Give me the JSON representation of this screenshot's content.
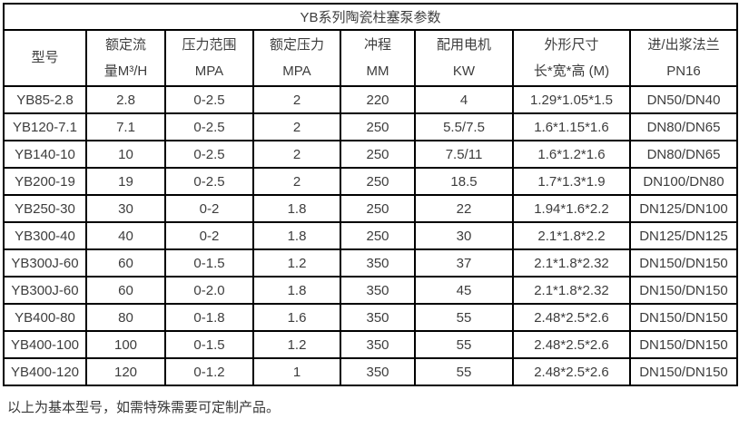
{
  "title": "YB系列陶瓷柱塞泵参数",
  "table": {
    "columns": [
      {
        "lines": [
          "型号"
        ]
      },
      {
        "lines": [
          "额定流",
          "量M³/H"
        ]
      },
      {
        "lines": [
          "压力范围",
          "MPA"
        ]
      },
      {
        "lines": [
          "额定压力",
          "MPA"
        ]
      },
      {
        "lines": [
          "冲程",
          "MM"
        ]
      },
      {
        "lines": [
          "配用电机",
          "KW"
        ]
      },
      {
        "lines": [
          "外形尺寸",
          "长*宽*高 (M)"
        ]
      },
      {
        "lines": [
          "进/出浆法兰",
          "PN16"
        ]
      }
    ],
    "rows": [
      [
        "YB85-2.8",
        "2.8",
        "0-2.5",
        "2",
        "220",
        "4",
        "1.29*1.05*1.5",
        "DN50/DN40"
      ],
      [
        "YB120-7.1",
        "7.1",
        "0-2.5",
        "2",
        "250",
        "5.5/7.5",
        "1.6*1.15*1.6",
        "DN80/DN65"
      ],
      [
        "YB140-10",
        "10",
        "0-2.5",
        "2",
        "250",
        "7.5/11",
        "1.6*1.2*1.6",
        "DN80/DN65"
      ],
      [
        "YB200-19",
        "19",
        "0-2.5",
        "2",
        "250",
        "18.5",
        "1.7*1.3*1.9",
        "DN100/DN80"
      ],
      [
        "YB250-30",
        "30",
        "0-2",
        "1.8",
        "250",
        "22",
        "1.94*1.6*2.2",
        "DN125/DN100"
      ],
      [
        "YB300-40",
        "40",
        "0-2",
        "1.8",
        "250",
        "30",
        "2.1*1.8*2.2",
        "DN125/DN125"
      ],
      [
        "YB300J-60",
        "60",
        "0-1.5",
        "1.2",
        "350",
        "37",
        "2.1*1.8*2.32",
        "DN150/DN150"
      ],
      [
        "YB300J-60",
        "60",
        "0-2.0",
        "1.8",
        "350",
        "45",
        "2.1*1.8*2.32",
        "DN150/DN150"
      ],
      [
        "YB400-80",
        "80",
        "0-1.8",
        "1.6",
        "350",
        "55",
        "2.48*2.5*2.6",
        "DN150/DN150"
      ],
      [
        "YB400-100",
        "100",
        "0-1.5",
        "1.2",
        "350",
        "55",
        "2.48*2.5*2.6",
        "DN150/DN150"
      ],
      [
        "YB400-120",
        "120",
        "0-1.2",
        "1",
        "350",
        "55",
        "2.48*2.5*2.6",
        "DN150/DN150"
      ]
    ]
  },
  "footer_note": "以上为基本型号，如需特殊需要可定制产品。",
  "colors": {
    "border": "#000000",
    "text": "#3d3d3d",
    "background": "#ffffff"
  }
}
